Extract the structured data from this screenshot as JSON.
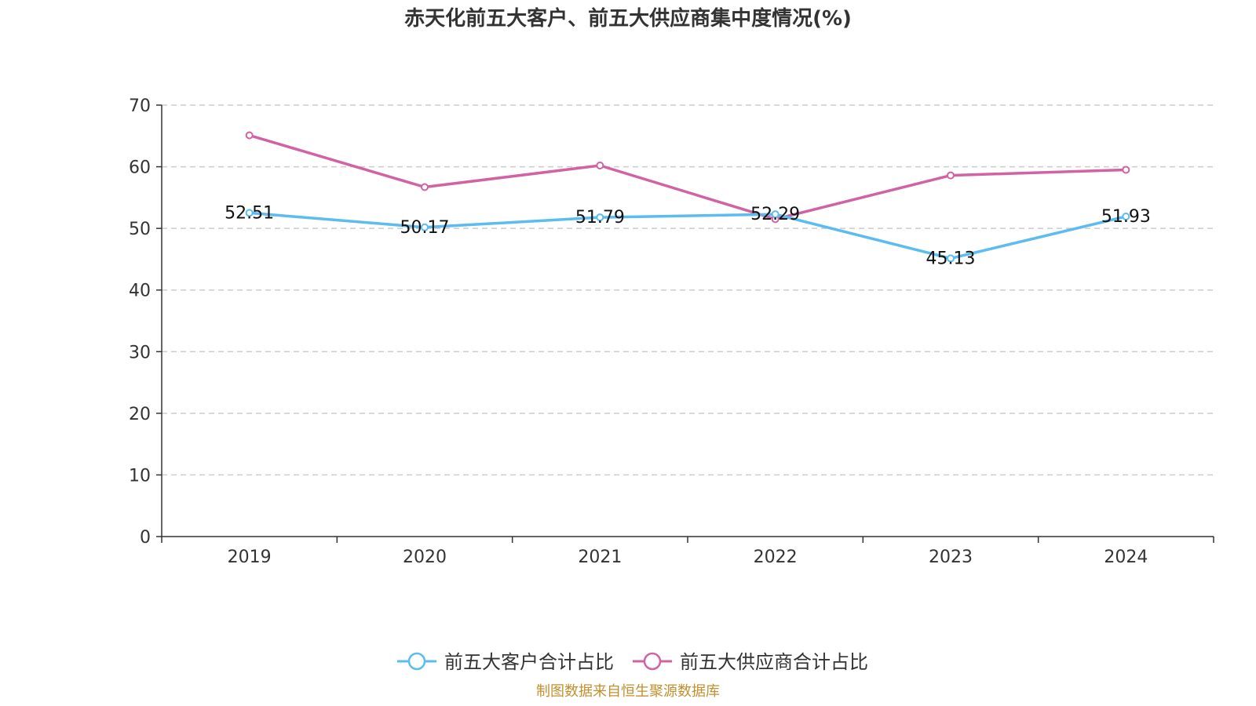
{
  "chart_data": {
    "type": "line",
    "title": "赤天化前五大客户、前五大供应商集中度情况(%)",
    "categories": [
      "2019",
      "2020",
      "2021",
      "2022",
      "2023",
      "2024"
    ],
    "ylim": [
      0,
      70
    ],
    "yticks": [
      0,
      10,
      20,
      30,
      40,
      50,
      60,
      70
    ],
    "grid": true,
    "legend_position": "bottom-center",
    "series": [
      {
        "name": "前五大客户合计占比",
        "color": "#5BBCEF",
        "values": [
          52.51,
          50.17,
          51.79,
          52.29,
          45.13,
          51.93
        ],
        "labels": [
          "52.51",
          "50.17",
          "51.79",
          "52.29",
          "45.13",
          "51.93"
        ],
        "show_labels": true
      },
      {
        "name": "前五大供应商合计占比",
        "color": "#D162A4",
        "values": [
          65.1,
          56.7,
          60.2,
          51.5,
          58.6,
          59.5
        ],
        "show_labels": false
      }
    ],
    "source": "制图数据来自恒生聚源数据库",
    "source_color": "#C0902F"
  }
}
